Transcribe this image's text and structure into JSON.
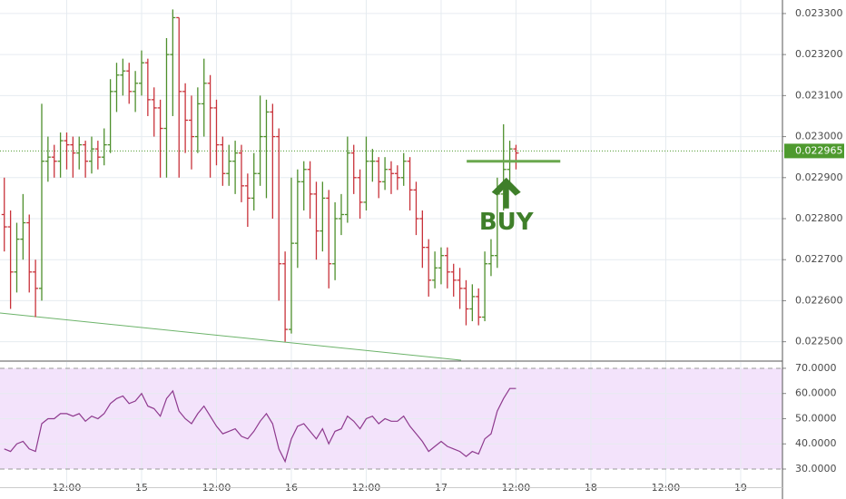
{
  "chart_data": {
    "type": "ohlc",
    "up_color": "#4e8f2c",
    "down_color": "#c8323a",
    "grid": true,
    "xlim": [
      1.31,
      126.7
    ],
    "xticks": [
      {
        "value": 12,
        "label": "12:00"
      },
      {
        "value": 24,
        "label": "15"
      },
      {
        "value": 36,
        "label": "12:00"
      },
      {
        "value": 48,
        "label": "16"
      },
      {
        "value": 60,
        "label": "12:00"
      },
      {
        "value": 72,
        "label": "17"
      },
      {
        "value": 84,
        "label": "12:00"
      },
      {
        "value": 96,
        "label": "18"
      },
      {
        "value": 108,
        "label": "12:00"
      },
      {
        "value": 120,
        "label": "19"
      }
    ],
    "ylim": [
      0.022455,
      0.023333
    ],
    "yticks": [
      {
        "value": 0.0225,
        "label": "0.022500"
      },
      {
        "value": 0.0226,
        "label": "0.022600"
      },
      {
        "value": 0.0227,
        "label": "0.022700"
      },
      {
        "value": 0.0228,
        "label": "0.022800"
      },
      {
        "value": 0.0229,
        "label": "0.022900"
      },
      {
        "value": 0.023,
        "label": "0.023000"
      },
      {
        "value": 0.0231,
        "label": "0.023100"
      },
      {
        "value": 0.0232,
        "label": "0.023200"
      },
      {
        "value": 0.0233,
        "label": "0.023300"
      }
    ],
    "x": [
      2,
      3,
      4,
      5,
      6,
      7,
      8,
      9,
      10,
      11,
      12,
      13,
      14,
      15,
      16,
      17,
      18,
      19,
      20,
      21,
      22,
      23,
      24,
      25,
      26,
      27,
      28,
      29,
      30,
      31,
      32,
      33,
      34,
      35,
      36,
      37,
      38,
      39,
      40,
      41,
      42,
      43,
      44,
      45,
      46,
      47,
      48,
      49,
      50,
      51,
      52,
      53,
      54,
      55,
      56,
      57,
      58,
      59,
      60,
      61,
      62,
      63,
      64,
      65,
      66,
      67,
      68,
      69,
      70,
      71,
      72,
      73,
      74,
      75,
      76,
      77,
      78,
      79,
      80,
      81,
      82,
      83,
      84
    ],
    "ohlc": [
      [
        0.02281,
        0.0229,
        0.02272,
        0.02278
      ],
      [
        0.02278,
        0.02282,
        0.02258,
        0.02267
      ],
      [
        0.02267,
        0.02279,
        0.02262,
        0.02275
      ],
      [
        0.02275,
        0.02286,
        0.0227,
        0.02279
      ],
      [
        0.02279,
        0.02281,
        0.02262,
        0.02267
      ],
      [
        0.02267,
        0.0227,
        0.02256,
        0.02263
      ],
      [
        0.02263,
        0.02308,
        0.0226,
        0.02294
      ],
      [
        0.02294,
        0.023,
        0.02289,
        0.02295
      ],
      [
        0.02295,
        0.02298,
        0.0229,
        0.02294
      ],
      [
        0.02294,
        0.02301,
        0.0229,
        0.02299
      ],
      [
        0.02299,
        0.02301,
        0.02292,
        0.02298
      ],
      [
        0.02298,
        0.023,
        0.0229,
        0.02296
      ],
      [
        0.02296,
        0.023,
        0.02292,
        0.02298
      ],
      [
        0.02298,
        0.02299,
        0.0229,
        0.02294
      ],
      [
        0.02294,
        0.023,
        0.02291,
        0.02297
      ],
      [
        0.02297,
        0.02299,
        0.02292,
        0.02295
      ],
      [
        0.02295,
        0.02302,
        0.02293,
        0.02298
      ],
      [
        0.02298,
        0.02314,
        0.02296,
        0.02311
      ],
      [
        0.02311,
        0.02318,
        0.02306,
        0.02315
      ],
      [
        0.02315,
        0.02319,
        0.0231,
        0.02316
      ],
      [
        0.02316,
        0.02318,
        0.02308,
        0.02311
      ],
      [
        0.02311,
        0.02316,
        0.02306,
        0.02313
      ],
      [
        0.02313,
        0.02321,
        0.0231,
        0.02318
      ],
      [
        0.02318,
        0.02319,
        0.02305,
        0.02309
      ],
      [
        0.02309,
        0.02312,
        0.023,
        0.02307
      ],
      [
        0.02307,
        0.02309,
        0.0229,
        0.02302
      ],
      [
        0.02302,
        0.02324,
        0.0229,
        0.0232
      ],
      [
        0.0232,
        0.02331,
        0.02305,
        0.02329
      ],
      [
        0.02329,
        0.02329,
        0.0229,
        0.02311
      ],
      [
        0.02311,
        0.02313,
        0.02296,
        0.02304
      ],
      [
        0.02304,
        0.0231,
        0.02292,
        0.023
      ],
      [
        0.023,
        0.02312,
        0.02296,
        0.02308
      ],
      [
        0.02308,
        0.02319,
        0.023,
        0.02313
      ],
      [
        0.02313,
        0.02315,
        0.0229,
        0.02307
      ],
      [
        0.02307,
        0.02309,
        0.02293,
        0.02298
      ],
      [
        0.02298,
        0.023,
        0.02288,
        0.02291
      ],
      [
        0.02291,
        0.02298,
        0.02288,
        0.02294
      ],
      [
        0.02294,
        0.02299,
        0.02286,
        0.02296
      ],
      [
        0.02296,
        0.02298,
        0.02284,
        0.02288
      ],
      [
        0.02288,
        0.02291,
        0.02278,
        0.02285
      ],
      [
        0.02285,
        0.02296,
        0.02282,
        0.02291
      ],
      [
        0.02291,
        0.0231,
        0.02288,
        0.023
      ],
      [
        0.023,
        0.02309,
        0.02285,
        0.02306
      ],
      [
        0.02306,
        0.02308,
        0.0228,
        0.023
      ],
      [
        0.023,
        0.02302,
        0.0226,
        0.02269
      ],
      [
        0.02269,
        0.02272,
        0.0225,
        0.02253
      ],
      [
        0.02253,
        0.0229,
        0.02252,
        0.02274
      ],
      [
        0.02274,
        0.02292,
        0.02268,
        0.02289
      ],
      [
        0.02289,
        0.02294,
        0.02282,
        0.02292
      ],
      [
        0.02292,
        0.02294,
        0.0228,
        0.02286
      ],
      [
        0.02286,
        0.02289,
        0.0227,
        0.02277
      ],
      [
        0.02277,
        0.02289,
        0.02272,
        0.02285
      ],
      [
        0.02285,
        0.02287,
        0.02263,
        0.02269
      ],
      [
        0.02269,
        0.02284,
        0.02265,
        0.0228
      ],
      [
        0.0228,
        0.02286,
        0.02276,
        0.02281
      ],
      [
        0.02281,
        0.023,
        0.02279,
        0.02296
      ],
      [
        0.02296,
        0.02298,
        0.02286,
        0.0229
      ],
      [
        0.0229,
        0.02292,
        0.0228,
        0.02284
      ],
      [
        0.02284,
        0.023,
        0.02282,
        0.02294
      ],
      [
        0.02294,
        0.02297,
        0.02289,
        0.02294
      ],
      [
        0.02294,
        0.02295,
        0.02285,
        0.02289
      ],
      [
        0.02289,
        0.02295,
        0.02287,
        0.02292
      ],
      [
        0.02292,
        0.02294,
        0.02286,
        0.02291
      ],
      [
        0.02291,
        0.02293,
        0.02287,
        0.0229
      ],
      [
        0.0229,
        0.02296,
        0.02288,
        0.02294
      ],
      [
        0.02294,
        0.02295,
        0.02282,
        0.02287
      ],
      [
        0.02287,
        0.02289,
        0.02276,
        0.0228
      ],
      [
        0.0228,
        0.02282,
        0.02268,
        0.02273
      ],
      [
        0.02273,
        0.02275,
        0.02261,
        0.02265
      ],
      [
        0.02265,
        0.02272,
        0.02263,
        0.02268
      ],
      [
        0.02268,
        0.02273,
        0.02264,
        0.02271
      ],
      [
        0.02271,
        0.02273,
        0.02263,
        0.02267
      ],
      [
        0.02267,
        0.02269,
        0.02261,
        0.02265
      ],
      [
        0.02265,
        0.02268,
        0.02258,
        0.02263
      ],
      [
        0.02263,
        0.02265,
        0.02254,
        0.02258
      ],
      [
        0.02258,
        0.02264,
        0.02255,
        0.02261
      ],
      [
        0.02261,
        0.02263,
        0.02254,
        0.02256
      ],
      [
        0.02256,
        0.02272,
        0.02255,
        0.02269
      ],
      [
        0.02269,
        0.02275,
        0.02266,
        0.02271
      ],
      [
        0.02271,
        0.0229,
        0.02268,
        0.02286
      ],
      [
        0.02286,
        0.02303,
        0.02282,
        0.02292
      ],
      [
        0.02292,
        0.02299,
        0.02287,
        0.02297
      ],
      [
        0.02297,
        0.02298,
        0.02292,
        0.02296
      ]
    ],
    "last_price": 0.022965,
    "last_price_color": "#4e9a2e",
    "trendline": {
      "x": [
        1.31,
        75.2
      ],
      "y": [
        0.02257,
        0.022455
      ],
      "color": "#6cb36a"
    },
    "buy_level": {
      "x": [
        76.1,
        91.1
      ],
      "y": 0.02294,
      "color": "#6aa84f"
    },
    "annotation": {
      "text": "BUY",
      "color": "#3f7f2a"
    },
    "rsi": {
      "color": "#8e3a8e",
      "band_color": "#f3e3fb",
      "ylim": [
        22.8,
        72.5
      ],
      "yticks": [
        {
          "value": 30,
          "label": "30.0000"
        },
        {
          "value": 40,
          "label": "40.0000"
        },
        {
          "value": 50,
          "label": "50.0000"
        },
        {
          "value": 60,
          "label": "60.0000"
        },
        {
          "value": 70,
          "label": "70.0000"
        }
      ],
      "values": [
        38,
        37,
        40,
        41,
        38,
        37,
        48,
        50,
        50,
        52,
        52,
        51,
        52,
        49,
        51,
        50,
        52,
        56,
        58,
        59,
        56,
        57,
        60,
        55,
        54,
        51,
        58,
        61,
        53,
        50,
        48,
        52,
        55,
        51,
        47,
        44,
        45,
        46,
        43,
        42,
        45,
        49,
        52,
        48,
        38,
        33,
        42,
        47,
        48,
        45,
        42,
        46,
        40,
        45,
        46,
        51,
        49,
        46,
        50,
        51,
        48,
        50,
        49,
        49,
        51,
        47,
        44,
        41,
        37,
        39,
        41,
        39,
        38,
        37,
        35,
        37,
        36,
        42,
        44,
        53,
        58,
        62,
        62
      ]
    }
  }
}
